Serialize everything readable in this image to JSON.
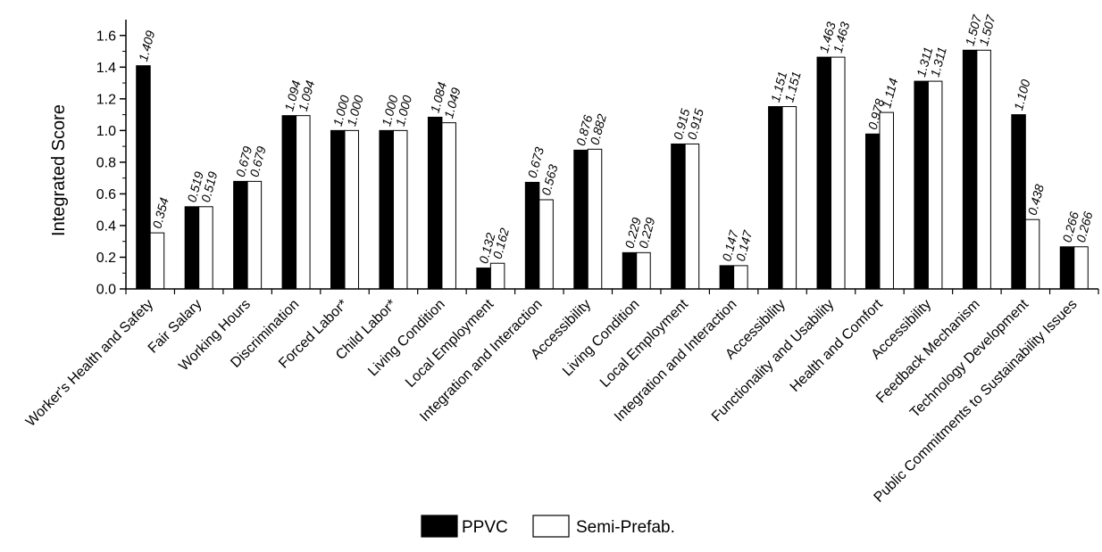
{
  "chart_data": {
    "type": "bar",
    "title": "",
    "xlabel": "",
    "ylabel": "Integrated Score",
    "ylim": [
      0,
      1.7
    ],
    "yticks": [
      0.0,
      0.2,
      0.4,
      0.6,
      0.8,
      1.0,
      1.2,
      1.4,
      1.6
    ],
    "ytick_labels": [
      "0.0",
      "0.2",
      "0.4",
      "0.6",
      "0.8",
      "1.0",
      "1.2",
      "1.4",
      "1.6"
    ],
    "grid": false,
    "legend_position": "bottom",
    "categories": [
      "Worker's Health and Safety",
      "Fair Salary",
      "Working Hours",
      "Discrimination",
      "Forced Labor*",
      "Child Labor*",
      "Living Condition",
      "Local Employment",
      "Integration and Interaction",
      "Accessibility",
      "Living Condition",
      "Local Employment",
      "Integration and Interaction",
      "Accessibility",
      "Functionality and Usability",
      "Health and Comfort",
      "Accessibility",
      "Feedback Mechanism",
      "Technology Development",
      "Public Commitments to Sustainability Issues"
    ],
    "series": [
      {
        "name": "PPVC",
        "color": "#000000",
        "values": [
          1.409,
          0.519,
          0.679,
          1.094,
          1.0,
          1.0,
          1.084,
          0.132,
          0.673,
          0.876,
          0.229,
          0.915,
          0.147,
          1.151,
          1.463,
          0.978,
          1.311,
          1.507,
          1.1,
          0.266
        ],
        "labels": [
          "1.409",
          "0.519",
          "0.679",
          "1.094",
          "1.000",
          "1.000",
          "1.084",
          "0.132",
          "0.673",
          "0.876",
          "0.229",
          "0.915",
          "0.147",
          "1.151",
          "1.463",
          "0.978",
          "1.311",
          "1.507",
          "1.100",
          "0.266"
        ]
      },
      {
        "name": "Semi-Prefab.",
        "color": "#ffffff",
        "values": [
          0.354,
          0.519,
          0.679,
          1.094,
          1.0,
          1.0,
          1.049,
          0.162,
          0.563,
          0.882,
          0.229,
          0.915,
          0.147,
          1.151,
          1.463,
          1.114,
          1.311,
          1.507,
          0.438,
          0.266
        ],
        "labels": [
          "0.354",
          "0.519",
          "0.679",
          "1.094",
          "1.000",
          "1.000",
          "1.049",
          "0.162",
          "0.563",
          "0.882",
          "0.229",
          "0.915",
          "0.147",
          "1.151",
          "1.463",
          "1.114",
          "1.311",
          "1.507",
          "0.438",
          "0.266"
        ]
      }
    ]
  }
}
